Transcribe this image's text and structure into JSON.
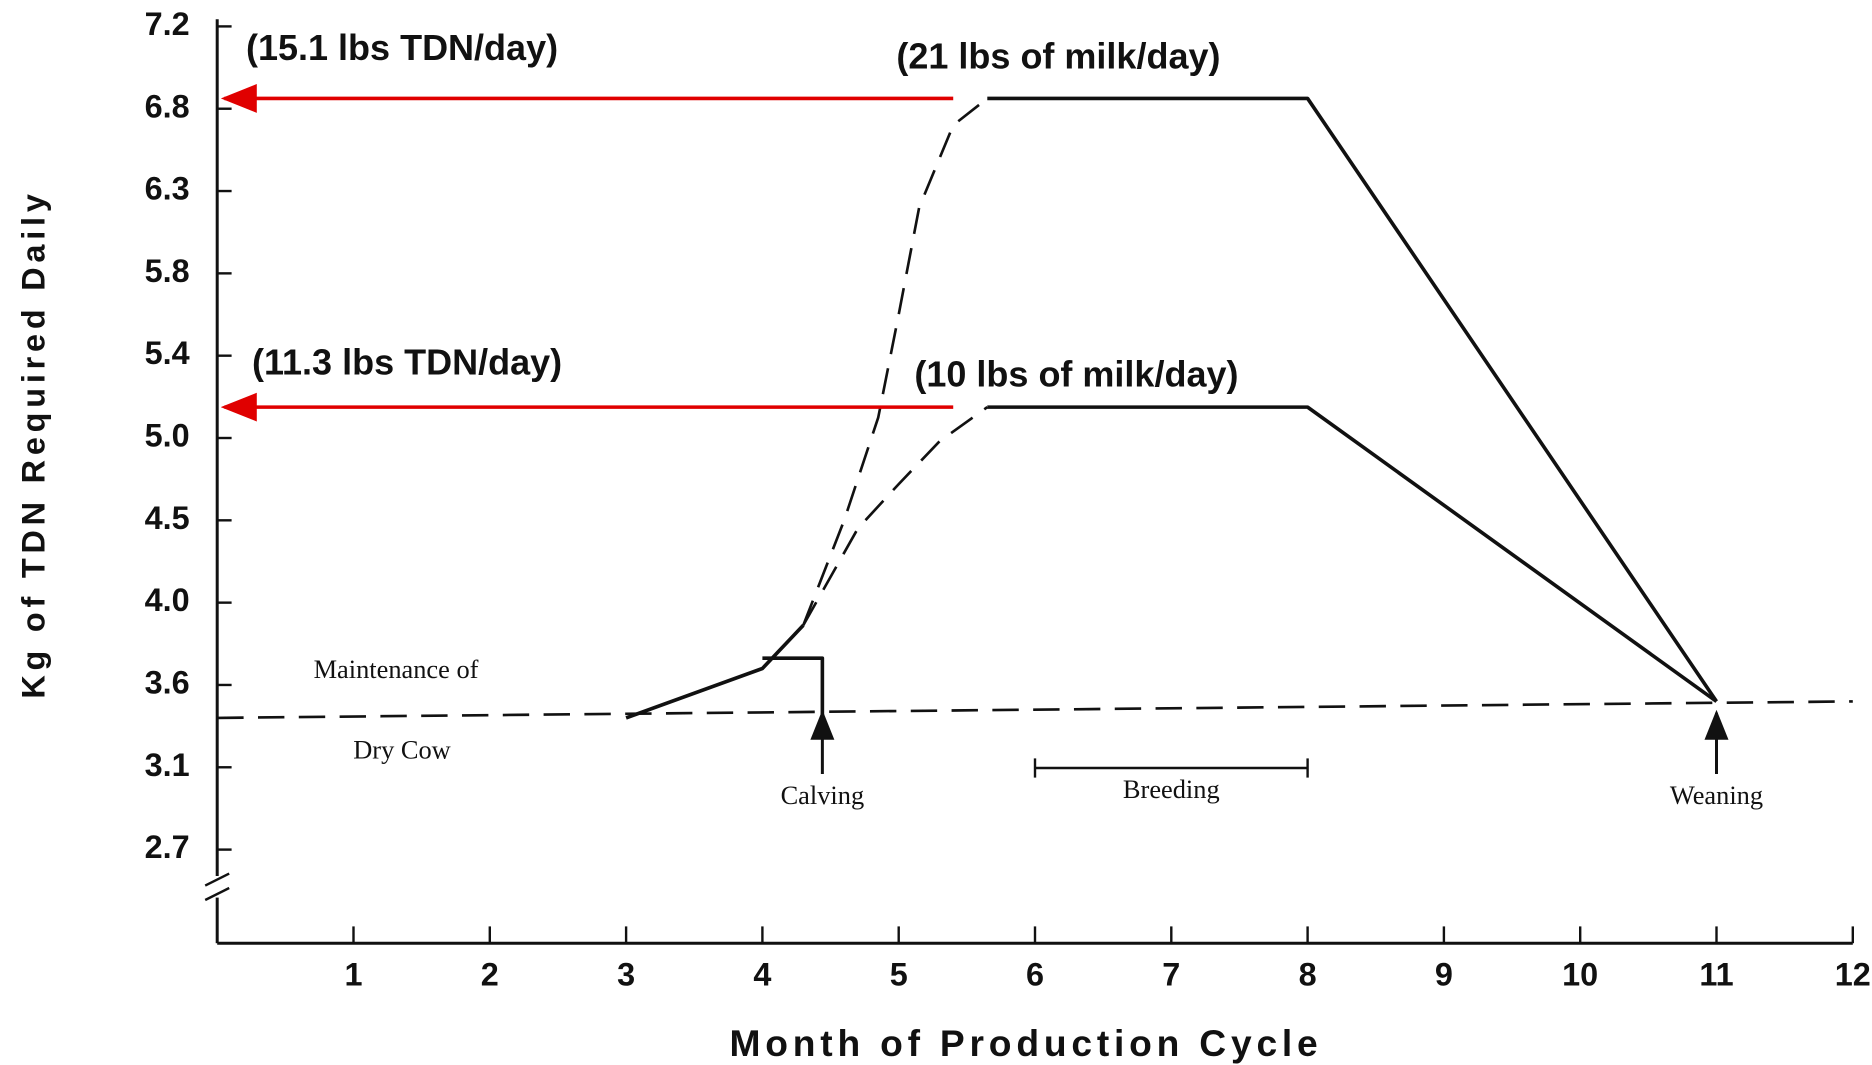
{
  "chart_data": {
    "type": "line",
    "xlabel": "Month of Production Cycle",
    "ylabel": "Kg of TDN Required Daily",
    "xlim": [
      0,
      12
    ],
    "xticks": [
      1,
      2,
      3,
      4,
      5,
      6,
      7,
      8,
      9,
      10,
      11,
      12
    ],
    "ylim": [
      2.7,
      7.2
    ],
    "yticks": [
      7.2,
      6.8,
      6.3,
      5.8,
      5.4,
      {
        "value": 5.0,
        "label": "5.0"
      },
      4.5,
      {
        "value": 4.0,
        "label": "4.0"
      },
      3.6,
      3.1,
      2.7
    ],
    "color": "#111111",
    "series": [
      {
        "style": "dashed",
        "x": [
          0,
          12
        ],
        "values": [
          3.4,
          3.5
        ]
      },
      {
        "style": "solid",
        "x": [
          3,
          4,
          4.3
        ],
        "values": [
          3.4,
          3.68,
          3.89
        ]
      },
      {
        "style": "solid",
        "x": [
          4,
          4.44,
          4.44
        ],
        "values": [
          3.73,
          3.73,
          3.4
        ]
      },
      {
        "style": "dashed",
        "x": [
          4.3,
          4.6,
          4.85,
          5.0,
          5.15,
          5.4,
          5.65
        ],
        "values": [
          3.89,
          4.5,
          5.1,
          5.6,
          6.2,
          6.7,
          6.85
        ]
      },
      {
        "style": "dashed",
        "x": [
          4.3,
          4.7,
          5.0,
          5.3,
          5.65
        ],
        "values": [
          3.89,
          4.45,
          4.72,
          4.98,
          5.15
        ]
      },
      {
        "style": "solid",
        "x": [
          5.65,
          8,
          11
        ],
        "values": [
          6.85,
          6.85,
          3.5
        ]
      },
      {
        "style": "solid",
        "x": [
          5.65,
          8,
          11
        ],
        "values": [
          5.15,
          5.15,
          3.5
        ]
      }
    ],
    "red_arrows": {
      "color": "#e00000",
      "items": [
        {
          "label": "(15.1 lbs TDN/day)",
          "milk": "(21 lbs of milk/day)",
          "y": 6.85,
          "x_from": 5.4,
          "x_to": 0
        },
        {
          "label": "(11.3 lbs TDN/day)",
          "milk": "(10 lbs of milk/day)",
          "y": 5.15,
          "x_from": 5.4,
          "x_to": 0
        }
      ]
    },
    "maintenance_label": [
      "Maintenance of",
      "Dry Cow"
    ],
    "events": [
      {
        "label": "Calving",
        "x": 4.44
      },
      {
        "label": "Weaning",
        "x": 11
      }
    ],
    "breeding": {
      "label": "Breeding",
      "x": [
        6,
        8
      ]
    }
  }
}
